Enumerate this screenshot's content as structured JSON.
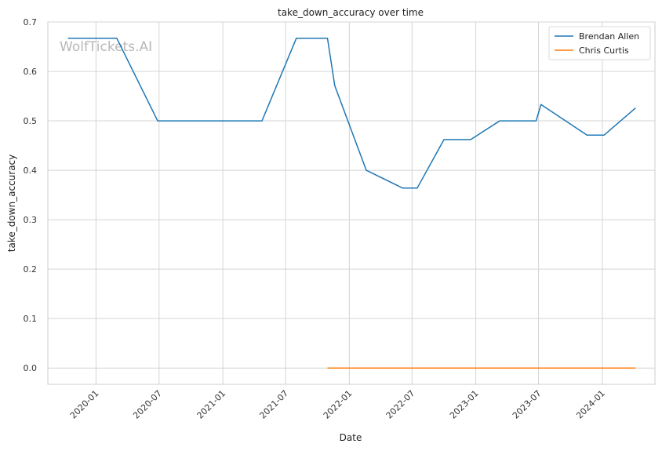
{
  "chart_data": {
    "type": "line",
    "title": "take_down_accuracy over time",
    "xlabel": "Date",
    "ylabel": "take_down_accuracy",
    "watermark": "WolfTickets.AI",
    "xlim": [
      "2019-08-15",
      "2024-06-01"
    ],
    "ylim": [
      -0.033,
      0.7
    ],
    "yticks": [
      0.0,
      0.1,
      0.2,
      0.3,
      0.4,
      0.5,
      0.6,
      0.7
    ],
    "xticks": [
      "2020-01-01",
      "2020-07-01",
      "2021-01-01",
      "2021-07-01",
      "2022-01-01",
      "2022-07-01",
      "2023-01-01",
      "2023-07-01",
      "2024-01-01"
    ],
    "xtick_labels": [
      "2020-01",
      "2020-07",
      "2021-01",
      "2021-07",
      "2022-01",
      "2022-07",
      "2023-01",
      "2023-07",
      "2024-01"
    ],
    "grid": true,
    "legend_position": "top-right",
    "series": [
      {
        "name": "Brendan Allen",
        "color": "#1f77b4",
        "points": [
          [
            "2019-10-12",
            0.667
          ],
          [
            "2020-03-01",
            0.667
          ],
          [
            "2020-06-27",
            0.5
          ],
          [
            "2021-04-24",
            0.5
          ],
          [
            "2021-08-01",
            0.667
          ],
          [
            "2021-10-30",
            0.667
          ],
          [
            "2021-11-20",
            0.571
          ],
          [
            "2022-02-19",
            0.4
          ],
          [
            "2022-06-04",
            0.364
          ],
          [
            "2022-07-16",
            0.364
          ],
          [
            "2022-10-01",
            0.462
          ],
          [
            "2022-12-17",
            0.462
          ],
          [
            "2023-03-11",
            0.5
          ],
          [
            "2023-06-24",
            0.5
          ],
          [
            "2023-07-08",
            0.533
          ],
          [
            "2023-11-18",
            0.471
          ],
          [
            "2024-01-06",
            0.471
          ],
          [
            "2024-04-06",
            0.526
          ]
        ]
      },
      {
        "name": "Chris Curtis",
        "color": "#ff7f0e",
        "points": [
          [
            "2021-10-30",
            0.0
          ],
          [
            "2024-04-06",
            0.0
          ]
        ]
      }
    ]
  }
}
